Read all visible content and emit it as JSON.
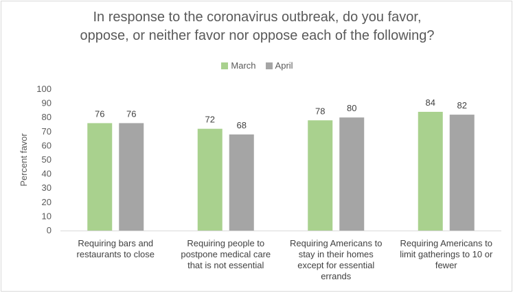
{
  "chart_data": {
    "type": "bar",
    "title_lines": [
      "In response to the coronavirus outbreak, do you favor,",
      "oppose, or neither favor nor oppose each of the following?"
    ],
    "ylabel": "Percent favor",
    "ylim": [
      0,
      100
    ],
    "yticks": [
      0,
      10,
      20,
      30,
      40,
      50,
      60,
      70,
      80,
      90,
      100
    ],
    "categories": [
      [
        "Requiring bars and",
        "restaurants to close"
      ],
      [
        "Requiring people to",
        "postpone medical care",
        "that is not essential"
      ],
      [
        "Requiring Americans to",
        "stay in their homes",
        "except for essential",
        "errands"
      ],
      [
        "Requiring Americans to",
        "limit gatherings to 10 or",
        "fewer"
      ]
    ],
    "series": [
      {
        "name": "March",
        "color": "#a9d18e",
        "values": [
          76,
          72,
          78,
          84
        ]
      },
      {
        "name": "April",
        "color": "#a5a5a5",
        "values": [
          76,
          68,
          80,
          82
        ]
      }
    ],
    "legend_position": "top",
    "grid": false
  }
}
